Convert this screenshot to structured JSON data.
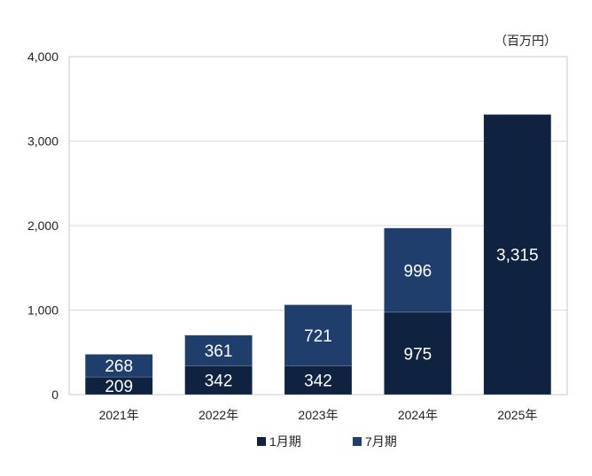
{
  "chart_data": {
    "type": "bar",
    "stacked": true,
    "unit_label": "（百万円）",
    "categories": [
      "2021年",
      "2022年",
      "2023年",
      "2024年",
      "2025年"
    ],
    "series": [
      {
        "name": "1月期",
        "values": [
          209,
          342,
          342,
          975,
          3315
        ],
        "labels": [
          "209",
          "342",
          "342",
          "975",
          "3,315"
        ],
        "color": "#0f2341"
      },
      {
        "name": "7月期",
        "values": [
          268,
          361,
          721,
          996,
          0
        ],
        "labels": [
          "268",
          "361",
          "721",
          "996",
          ""
        ],
        "color": "#1f3e6b"
      }
    ],
    "ylim": [
      0,
      4000
    ],
    "yticks": [
      0,
      1000,
      2000,
      3000,
      4000
    ],
    "ytick_labels": [
      "0",
      "1,000",
      "2,000",
      "3,000",
      "4,000"
    ],
    "grid": true,
    "legend_position": "bottom"
  }
}
